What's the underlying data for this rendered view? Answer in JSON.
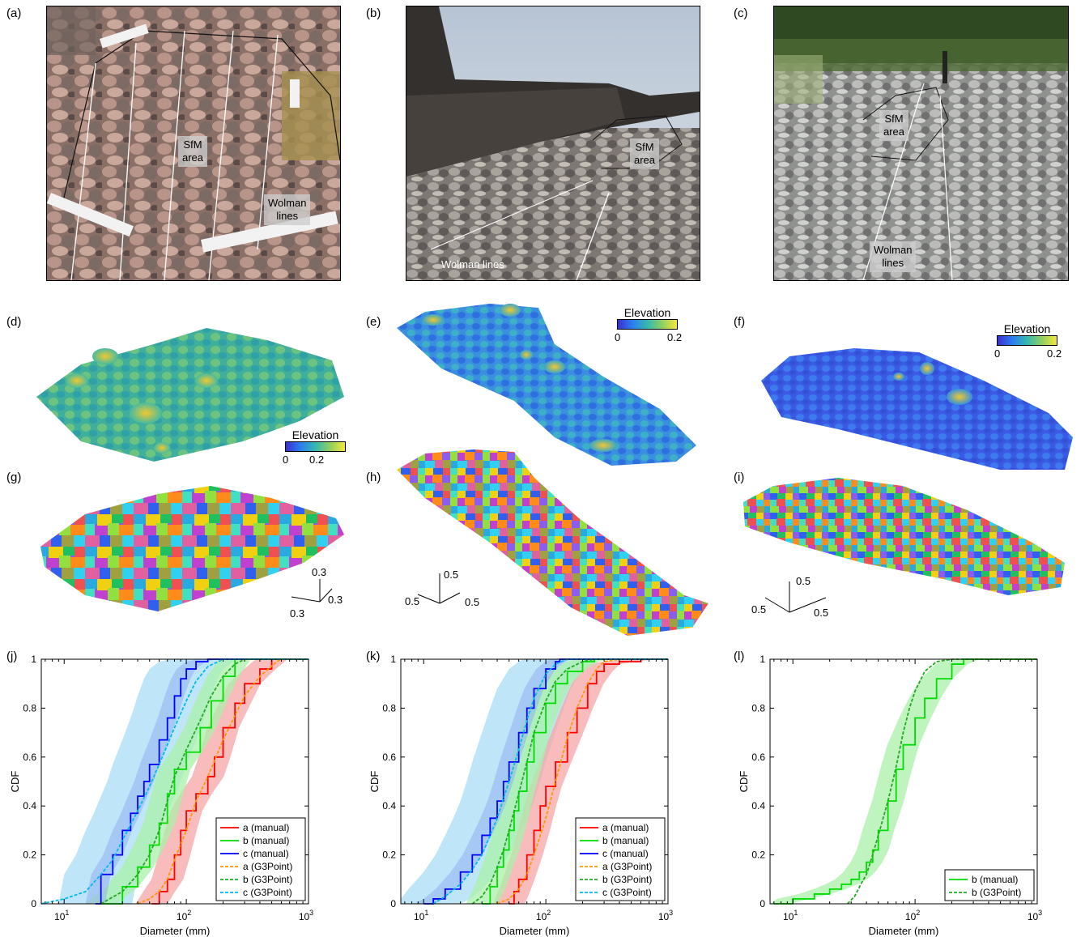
{
  "panel_labels": {
    "a": "(a)",
    "b": "(b)",
    "c": "(c)",
    "d": "(d)",
    "e": "(e)",
    "f": "(f)",
    "g": "(g)",
    "h": "(h)",
    "i": "(i)",
    "j": "(j)",
    "k": "(k)",
    "l": "(l)"
  },
  "photos": {
    "a": {
      "sfm": "SfM\narea",
      "wolman": "Wolman\nlines"
    },
    "b": {
      "sfm": "SfM\narea",
      "wolman": "Wolman lines"
    },
    "c": {
      "sfm": "SfM\narea",
      "wolman": "Wolman\nlines"
    }
  },
  "elevation": {
    "title": "Elevation",
    "d": {
      "min": "0",
      "max": "0.2"
    },
    "e": {
      "min": "0",
      "max": "0.2"
    },
    "f": {
      "min": "0",
      "max": "0.2"
    }
  },
  "axes3d": {
    "g": {
      "a": "0.3",
      "b": "0.3",
      "c": "0.3"
    },
    "h": {
      "a": "0.5",
      "b": "0.5",
      "c": "0.5"
    },
    "i": {
      "a": "0.5",
      "b": "0.5",
      "c": "0.5"
    }
  },
  "colors": {
    "a": "#ff0000",
    "b": "#00dd00",
    "c": "#0000ff",
    "a_g3": "#ff9900",
    "b_g3": "#22aa22",
    "c_g3": "#00bbee",
    "band_a": "#f7a6a6",
    "band_b": "#a9f0a9",
    "band_c": "#a9dcf6",
    "band_cdark": "#8fb0f0"
  },
  "chart_data": [
    {
      "type": "line",
      "panel": "j",
      "xlabel": "Diameter (mm)",
      "ylabel": "CDF",
      "xscale": "log",
      "xlim": [
        6.5,
        1000
      ],
      "ylim": [
        0,
        1
      ],
      "xticks": [
        [
          "10",
          "1"
        ],
        [
          "10",
          "2"
        ],
        [
          "10",
          "3"
        ]
      ],
      "yticks": [
        "0",
        "0.2",
        "0.4",
        "0.6",
        "0.8",
        "1"
      ],
      "legend": "bottom-right",
      "series": [
        {
          "name": "a (manual)",
          "key": "a",
          "x": [
            52,
            60,
            70,
            80,
            90,
            100,
            120,
            150,
            170,
            200,
            250,
            300,
            400,
            500
          ],
          "y": [
            0,
            0.05,
            0.1,
            0.2,
            0.3,
            0.38,
            0.45,
            0.52,
            0.6,
            0.72,
            0.82,
            0.9,
            0.96,
            1
          ]
        },
        {
          "name": "b (manual)",
          "key": "b",
          "x": [
            20,
            30,
            40,
            50,
            60,
            70,
            80,
            100,
            130,
            160,
            200,
            250
          ],
          "y": [
            0,
            0.07,
            0.15,
            0.24,
            0.33,
            0.45,
            0.55,
            0.62,
            0.72,
            0.83,
            0.93,
            1
          ]
        },
        {
          "name": "c (manual)",
          "key": "c",
          "x": [
            18,
            20,
            25,
            30,
            35,
            40,
            45,
            50,
            60,
            70,
            80,
            90,
            100,
            120,
            150
          ],
          "y": [
            0,
            0.12,
            0.2,
            0.3,
            0.37,
            0.44,
            0.5,
            0.57,
            0.67,
            0.76,
            0.85,
            0.92,
            0.96,
            0.99,
            1
          ]
        },
        {
          "name": "a (G3Point)",
          "key": "a_g3",
          "dashed": true,
          "x": [
            40,
            50,
            60,
            70,
            80,
            100,
            120,
            150,
            200,
            250,
            300,
            400,
            550,
            600
          ],
          "y": [
            0,
            0.02,
            0.05,
            0.1,
            0.18,
            0.3,
            0.42,
            0.52,
            0.67,
            0.77,
            0.85,
            0.93,
            0.99,
            1
          ]
        },
        {
          "name": "b (G3Point)",
          "key": "b_g3",
          "dashed": true,
          "x": [
            20,
            30,
            40,
            50,
            60,
            70,
            80,
            100,
            130,
            160,
            200,
            250,
            300
          ],
          "y": [
            0,
            0.05,
            0.12,
            0.2,
            0.3,
            0.42,
            0.52,
            0.63,
            0.75,
            0.85,
            0.93,
            0.98,
            1
          ]
        },
        {
          "name": "c (G3Point)",
          "key": "c_g3",
          "dashed": true,
          "x": [
            6.5,
            10,
            15,
            20,
            25,
            30,
            40,
            50,
            60,
            70,
            80,
            100,
            120,
            150,
            200
          ],
          "y": [
            0,
            0.02,
            0.05,
            0.12,
            0.18,
            0.26,
            0.38,
            0.48,
            0.57,
            0.65,
            0.72,
            0.83,
            0.91,
            0.97,
            1
          ]
        }
      ]
    },
    {
      "type": "line",
      "panel": "k",
      "xlabel": "Diameter (mm)",
      "ylabel": "CDF",
      "xscale": "log",
      "xlim": [
        6.5,
        1000
      ],
      "ylim": [
        0,
        1
      ],
      "xticks": [
        [
          "10",
          "1"
        ],
        [
          "10",
          "2"
        ],
        [
          "10",
          "3"
        ]
      ],
      "yticks": [
        "0",
        "0.2",
        "0.4",
        "0.6",
        "0.8",
        "1"
      ],
      "legend": "bottom-right",
      "series": [
        {
          "name": "a (manual)",
          "key": "a",
          "x": [
            50,
            55,
            60,
            70,
            80,
            90,
            100,
            120,
            150,
            180,
            220,
            260,
            300,
            400,
            600,
            1000
          ],
          "y": [
            0,
            0.05,
            0.1,
            0.2,
            0.3,
            0.4,
            0.48,
            0.58,
            0.7,
            0.8,
            0.9,
            0.95,
            0.98,
            0.99,
            1,
            1
          ]
        },
        {
          "name": "b (manual)",
          "key": "b",
          "x": [
            30,
            35,
            40,
            45,
            50,
            55,
            60,
            70,
            80,
            100,
            120,
            150,
            200,
            250
          ],
          "y": [
            0,
            0.07,
            0.15,
            0.22,
            0.3,
            0.38,
            0.46,
            0.58,
            0.7,
            0.82,
            0.9,
            0.95,
            0.99,
            1
          ]
        },
        {
          "name": "c (manual)",
          "key": "c",
          "x": [
            10,
            12,
            15,
            20,
            25,
            30,
            35,
            40,
            45,
            50,
            60,
            70,
            80,
            100,
            120,
            130
          ],
          "y": [
            0,
            0.02,
            0.06,
            0.13,
            0.2,
            0.28,
            0.35,
            0.42,
            0.5,
            0.58,
            0.7,
            0.8,
            0.88,
            0.96,
            0.99,
            1
          ]
        },
        {
          "name": "a (G3Point)",
          "key": "a_g3",
          "dashed": true,
          "x": [
            40,
            50,
            60,
            70,
            80,
            100,
            120,
            150,
            180,
            220,
            260,
            300,
            400
          ],
          "y": [
            0,
            0.02,
            0.06,
            0.12,
            0.2,
            0.35,
            0.5,
            0.68,
            0.8,
            0.9,
            0.96,
            0.99,
            1
          ]
        },
        {
          "name": "b (G3Point)",
          "key": "b_g3",
          "dashed": true,
          "x": [
            25,
            30,
            35,
            40,
            45,
            50,
            60,
            70,
            80,
            100,
            120,
            150,
            200,
            250
          ],
          "y": [
            0,
            0.03,
            0.08,
            0.15,
            0.22,
            0.3,
            0.45,
            0.58,
            0.7,
            0.83,
            0.91,
            0.96,
            0.99,
            1
          ]
        },
        {
          "name": "c (G3Point)",
          "key": "c_g3",
          "dashed": true,
          "x": [
            12,
            15,
            20,
            25,
            30,
            35,
            40,
            50,
            60,
            70,
            80,
            100,
            120,
            150
          ],
          "y": [
            0,
            0.03,
            0.08,
            0.14,
            0.2,
            0.28,
            0.35,
            0.5,
            0.63,
            0.75,
            0.84,
            0.94,
            0.98,
            1
          ]
        }
      ]
    },
    {
      "type": "line",
      "panel": "l",
      "xlabel": "Diameter (mm)",
      "ylabel": "CDF",
      "xscale": "log",
      "xlim": [
        6.5,
        1000
      ],
      "ylim": [
        0,
        1
      ],
      "xticks": [
        [
          "10",
          "1"
        ],
        [
          "10",
          "2"
        ],
        [
          "10",
          "3"
        ]
      ],
      "yticks": [
        "0",
        "0.2",
        "0.4",
        "0.6",
        "0.8",
        "1"
      ],
      "legend": "bottom-right",
      "series": [
        {
          "name": "b (manual)",
          "key": "b",
          "x": [
            7,
            10,
            15,
            20,
            25,
            30,
            35,
            40,
            45,
            50,
            60,
            70,
            80,
            100,
            120,
            150,
            200,
            250,
            400
          ],
          "y": [
            0,
            0.02,
            0.04,
            0.06,
            0.08,
            0.1,
            0.13,
            0.17,
            0.22,
            0.3,
            0.42,
            0.55,
            0.65,
            0.76,
            0.84,
            0.92,
            0.98,
            1,
            1
          ]
        },
        {
          "name": "b (G3Point)",
          "key": "b_g3",
          "dashed": true,
          "x": [
            28,
            32,
            36,
            40,
            45,
            50,
            60,
            70,
            80,
            90,
            100,
            120,
            150,
            200
          ],
          "y": [
            0,
            0.03,
            0.08,
            0.12,
            0.2,
            0.28,
            0.42,
            0.56,
            0.7,
            0.8,
            0.87,
            0.95,
            0.99,
            1
          ]
        }
      ]
    }
  ]
}
